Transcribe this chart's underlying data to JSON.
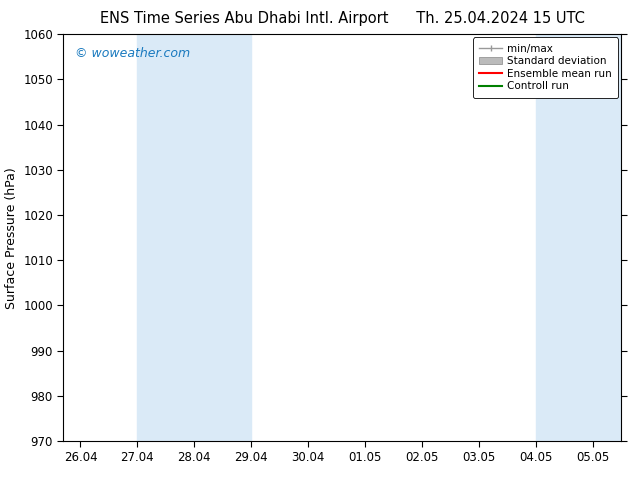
{
  "title_left": "ENS Time Series Abu Dhabi Intl. Airport",
  "title_right": "Th. 25.04.2024 15 UTC",
  "ylabel": "Surface Pressure (hPa)",
  "ylim": [
    970,
    1060
  ],
  "yticks": [
    970,
    980,
    990,
    1000,
    1010,
    1020,
    1030,
    1040,
    1050,
    1060
  ],
  "xlabel_ticks": [
    "26.04",
    "27.04",
    "28.04",
    "29.04",
    "30.04",
    "01.05",
    "02.05",
    "03.05",
    "04.05",
    "05.05"
  ],
  "watermark": "© woweather.com",
  "watermark_color": "#1a7abf",
  "shaded_bands": [
    {
      "xstart": 1.0,
      "xend": 3.0,
      "color": "#daeaf7"
    },
    {
      "xstart": 8.0,
      "xend": 9.5,
      "color": "#daeaf7"
    }
  ],
  "legend_items": [
    {
      "label": "min/max",
      "color": "#999999",
      "lw": 1.0,
      "type": "minmax"
    },
    {
      "label": "Standard deviation",
      "color": "#bbbbbb",
      "lw": 6,
      "type": "band"
    },
    {
      "label": "Ensemble mean run",
      "color": "#ff0000",
      "lw": 1.5,
      "type": "line"
    },
    {
      "label": "Controll run",
      "color": "#008000",
      "lw": 1.5,
      "type": "line"
    }
  ],
  "title_fontsize": 10.5,
  "tick_fontsize": 8.5,
  "ylabel_fontsize": 9,
  "watermark_fontsize": 9,
  "legend_fontsize": 7.5,
  "fig_bg": "#ffffff",
  "plot_bg": "#ffffff"
}
